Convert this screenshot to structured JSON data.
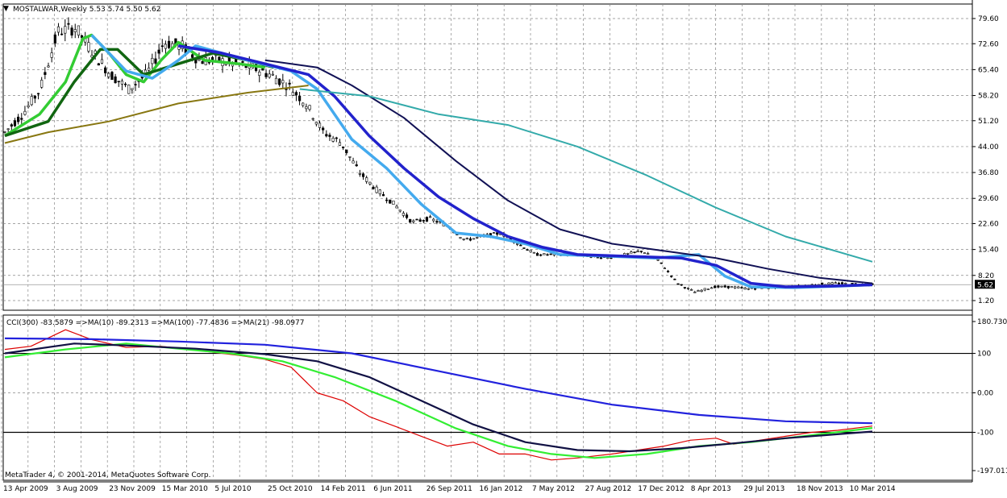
{
  "header": {
    "symbol_line": "MOSTALWAR,Weekly  5.53 5.74 5.50 5.62",
    "menu_icon": "triangle-down-icon"
  },
  "indicator_header": {
    "text": "CCI(300) -83.5879  =>MA(10) -89.2313  =>MA(100) -77.4836  =>MA(21) -98.0977"
  },
  "copyright": "MetaTrader 4, © 2001-2014, MetaQuotes Software Corp.",
  "current_price_label": "5.62",
  "colors": {
    "candles": "#000000",
    "ema_fast_light": "#33cc33",
    "ema_fast_dark": "#116611",
    "ema_long_olive": "#887711",
    "ma_blue": "#2222cc",
    "ma_lightblue": "#44aaee",
    "ma_navy": "#111155",
    "ma_teal": "#33aaaa",
    "cci": "#dd0000",
    "cci_ma10": "#33ee33",
    "cci_ma100": "#2222dd",
    "cci_ma21": "#111144",
    "grid": "#888888"
  },
  "chart_data": [
    {
      "type": "candlestick",
      "title": "MOSTALWAR,Weekly",
      "ohlc_last": {
        "open": 5.53,
        "high": 5.74,
        "low": 5.5,
        "close": 5.62
      },
      "y_ticks": [
        "79.60",
        "72.60",
        "65.40",
        "58.20",
        "51.20",
        "44.00",
        "36.80",
        "29.60",
        "22.60",
        "15.40",
        "8.20",
        "1.20"
      ],
      "ylim": [
        1.2,
        79.6
      ],
      "grid": true,
      "x_ticks": [
        "13 Apr 2009",
        "3 Aug 2009",
        "23 Nov 2009",
        "15 Mar 2010",
        "5 Jul 2010",
        "25 Oct 2010",
        "14 Feb 2011",
        "6 Jun 2011",
        "26 Sep 2011",
        "16 Jan 2012",
        "7 May 2012",
        "27 Aug 2012",
        "17 Dec 2012",
        "8 Apr 2013",
        "29 Jul 2013",
        "18 Nov 2013",
        "10 Mar 2014"
      ],
      "price_path": [
        [
          "13 Apr 2009",
          48
        ],
        [
          "18 May 2009",
          53
        ],
        [
          "22 Jun 2009",
          60
        ],
        [
          "27 Jul 2009",
          76
        ],
        [
          "3 Aug 2009",
          77
        ],
        [
          "7 Sep 2009",
          70
        ],
        [
          "12 Oct 2009",
          64
        ],
        [
          "23 Nov 2009",
          60
        ],
        [
          "4 Jan 2010",
          64
        ],
        [
          "15 Feb 2010",
          73
        ],
        [
          "15 Mar 2010",
          72
        ],
        [
          "26 Apr 2010",
          68
        ],
        [
          "31 May 2010",
          68
        ],
        [
          "5 Jul 2010",
          67
        ],
        [
          "16 Aug 2010",
          66
        ],
        [
          "27 Sep 2010",
          64
        ],
        [
          "25 Oct 2010",
          61
        ],
        [
          "22 Nov 2010",
          56
        ],
        [
          "3 Jan 2011",
          48
        ],
        [
          "14 Feb 2011",
          45
        ],
        [
          "28 Mar 2011",
          37
        ],
        [
          "2 May 2011",
          32
        ],
        [
          "6 Jun 2011",
          28
        ],
        [
          "18 Jul 2011",
          23
        ],
        [
          "29 Aug 2011",
          24
        ],
        [
          "26 Sep 2011",
          22
        ],
        [
          "7 Nov 2011",
          18
        ],
        [
          "12 Dec 2011",
          19
        ],
        [
          "16 Jan 2012",
          20
        ],
        [
          "27 Feb 2012",
          17
        ],
        [
          "2 Apr 2012",
          14
        ],
        [
          "7 May 2012",
          14
        ],
        [
          "18 Jun 2012",
          14
        ],
        [
          "27 Aug 2012",
          13.5
        ],
        [
          "8 Oct 2012",
          13
        ],
        [
          "12 Nov 2012",
          14
        ],
        [
          "17 Dec 2012",
          15
        ],
        [
          "4 Feb 2013",
          12
        ],
        [
          "11 Mar 2013",
          6
        ],
        [
          "8 Apr 2013",
          3.5
        ],
        [
          "20 May 2013",
          5
        ],
        [
          "24 Jun 2013",
          5
        ],
        [
          "29 Jul 2013",
          4.5
        ],
        [
          "9 Sep 2013",
          4.8
        ],
        [
          "14 Oct 2013",
          5
        ],
        [
          "18 Nov 2013",
          5.2
        ],
        [
          "30 Dec 2013",
          5.8
        ],
        [
          "10 Feb 2014",
          6
        ],
        [
          "10 Mar 2014",
          5.8
        ],
        [
          "14 Apr 2014",
          5.62
        ]
      ],
      "moving_averages": [
        {
          "color_key": "ema_fast_light",
          "values": [
            [
              0.0,
              47
            ],
            [
              0.04,
              53
            ],
            [
              0.07,
              62
            ],
            [
              0.09,
              74
            ],
            [
              0.1,
              75
            ],
            [
              0.12,
              70
            ],
            [
              0.14,
              64
            ],
            [
              0.16,
              62
            ],
            [
              0.18,
              68
            ],
            [
              0.2,
              73
            ],
            [
              0.23,
              68
            ],
            [
              0.27,
              67
            ],
            [
              0.3,
              66
            ]
          ]
        },
        {
          "color_key": "ema_fast_dark",
          "values": [
            [
              0.0,
              47
            ],
            [
              0.05,
              51
            ],
            [
              0.08,
              62
            ],
            [
              0.11,
              71
            ],
            [
              0.13,
              71
            ],
            [
              0.16,
              64
            ],
            [
              0.2,
              67
            ],
            [
              0.24,
              70
            ],
            [
              0.28,
              68
            ],
            [
              0.31,
              66
            ]
          ]
        },
        {
          "color_key": "ema_long_olive",
          "values": [
            [
              0.0,
              45
            ],
            [
              0.05,
              48
            ],
            [
              0.12,
              51
            ],
            [
              0.2,
              56
            ],
            [
              0.28,
              59
            ],
            [
              0.35,
              61
            ]
          ]
        },
        {
          "color_key": "ma_lightblue",
          "values": [
            [
              0.1,
              75
            ],
            [
              0.14,
              65
            ],
            [
              0.17,
              63
            ],
            [
              0.2,
              68
            ],
            [
              0.22,
              72
            ],
            [
              0.28,
              68
            ],
            [
              0.33,
              65
            ],
            [
              0.36,
              60
            ],
            [
              0.4,
              46
            ],
            [
              0.44,
              38
            ],
            [
              0.48,
              28
            ],
            [
              0.52,
              20
            ],
            [
              0.56,
              19
            ],
            [
              0.6,
              17
            ],
            [
              0.64,
              14
            ],
            [
              0.7,
              13.5
            ],
            [
              0.75,
              13
            ],
            [
              0.8,
              14
            ],
            [
              0.83,
              8
            ],
            [
              0.86,
              5
            ],
            [
              0.91,
              4.8
            ],
            [
              0.96,
              5.2
            ],
            [
              1.0,
              5.6
            ]
          ]
        },
        {
          "color_key": "ma_blue",
          "values": [
            [
              0.2,
              72
            ],
            [
              0.25,
              70
            ],
            [
              0.3,
              67
            ],
            [
              0.35,
              64
            ],
            [
              0.38,
              58
            ],
            [
              0.42,
              47
            ],
            [
              0.46,
              38
            ],
            [
              0.5,
              30
            ],
            [
              0.54,
              24
            ],
            [
              0.58,
              19
            ],
            [
              0.62,
              16
            ],
            [
              0.66,
              14
            ],
            [
              0.72,
              13.5
            ],
            [
              0.78,
              13
            ],
            [
              0.82,
              11
            ],
            [
              0.86,
              6
            ],
            [
              0.9,
              5
            ],
            [
              0.95,
              5.2
            ],
            [
              1.0,
              5.6
            ]
          ]
        },
        {
          "color_key": "ma_navy",
          "values": [
            [
              0.3,
              68
            ],
            [
              0.36,
              66
            ],
            [
              0.4,
              61
            ],
            [
              0.46,
              52
            ],
            [
              0.52,
              40
            ],
            [
              0.58,
              29
            ],
            [
              0.64,
              21
            ],
            [
              0.7,
              17
            ],
            [
              0.76,
              15
            ],
            [
              0.82,
              13
            ],
            [
              0.88,
              10
            ],
            [
              0.94,
              7.5
            ],
            [
              1.0,
              6
            ]
          ]
        },
        {
          "color_key": "ma_teal",
          "values": [
            [
              0.34,
              60
            ],
            [
              0.42,
              58
            ],
            [
              0.5,
              53
            ],
            [
              0.58,
              50
            ],
            [
              0.66,
              44
            ],
            [
              0.74,
              36
            ],
            [
              0.82,
              27
            ],
            [
              0.9,
              19
            ],
            [
              1.0,
              12
            ]
          ]
        }
      ]
    },
    {
      "type": "line",
      "title": "CCI(300)",
      "y_ticks": [
        "180.7301",
        "100",
        "0.00",
        "-100",
        "-197.011"
      ],
      "ylim": [
        -197.011,
        180.7301
      ],
      "levels": [
        100,
        -100
      ],
      "series": [
        {
          "name": "CCI(300)",
          "color_key": "cci",
          "last": -83.5879,
          "points": [
            [
              0.0,
              110
            ],
            [
              0.03,
              118
            ],
            [
              0.07,
              160
            ],
            [
              0.1,
              135
            ],
            [
              0.14,
              115
            ],
            [
              0.18,
              118
            ],
            [
              0.22,
              108
            ],
            [
              0.27,
              95
            ],
            [
              0.3,
              85
            ],
            [
              0.33,
              65
            ],
            [
              0.36,
              0
            ],
            [
              0.39,
              -20
            ],
            [
              0.42,
              -60
            ],
            [
              0.45,
              -85
            ],
            [
              0.48,
              -110
            ],
            [
              0.51,
              -135
            ],
            [
              0.54,
              -125
            ],
            [
              0.57,
              -155
            ],
            [
              0.6,
              -155
            ],
            [
              0.63,
              -170
            ],
            [
              0.66,
              -165
            ],
            [
              0.7,
              -155
            ],
            [
              0.73,
              -145
            ],
            [
              0.76,
              -135
            ],
            [
              0.79,
              -120
            ],
            [
              0.82,
              -115
            ],
            [
              0.84,
              -130
            ],
            [
              0.87,
              -120
            ],
            [
              0.9,
              -110
            ],
            [
              0.93,
              -100
            ],
            [
              0.96,
              -95
            ],
            [
              1.0,
              -84
            ]
          ]
        },
        {
          "name": "MA(10)",
          "color_key": "cci_ma10",
          "last": -89.2313,
          "points": [
            [
              0.0,
              90
            ],
            [
              0.07,
              110
            ],
            [
              0.14,
              125
            ],
            [
              0.2,
              112
            ],
            [
              0.26,
              100
            ],
            [
              0.32,
              80
            ],
            [
              0.38,
              40
            ],
            [
              0.45,
              -20
            ],
            [
              0.52,
              -90
            ],
            [
              0.58,
              -135
            ],
            [
              0.63,
              -155
            ],
            [
              0.68,
              -165
            ],
            [
              0.74,
              -155
            ],
            [
              0.8,
              -135
            ],
            [
              0.86,
              -125
            ],
            [
              0.92,
              -110
            ],
            [
              1.0,
              -89
            ]
          ]
        },
        {
          "name": "MA(100)",
          "color_key": "cci_ma100",
          "last": -77.4836,
          "points": [
            [
              0.0,
              138
            ],
            [
              0.1,
              136
            ],
            [
              0.2,
              130
            ],
            [
              0.3,
              122
            ],
            [
              0.4,
              100
            ],
            [
              0.5,
              55
            ],
            [
              0.6,
              10
            ],
            [
              0.7,
              -30
            ],
            [
              0.8,
              -56
            ],
            [
              0.9,
              -72
            ],
            [
              1.0,
              -77
            ]
          ]
        },
        {
          "name": "MA(21)",
          "color_key": "cci_ma21",
          "last": -98.0977,
          "points": [
            [
              0.0,
              100
            ],
            [
              0.08,
              125
            ],
            [
              0.14,
              120
            ],
            [
              0.22,
              112
            ],
            [
              0.3,
              98
            ],
            [
              0.36,
              80
            ],
            [
              0.42,
              40
            ],
            [
              0.48,
              -20
            ],
            [
              0.54,
              -80
            ],
            [
              0.6,
              -125
            ],
            [
              0.66,
              -145
            ],
            [
              0.72,
              -148
            ],
            [
              0.78,
              -140
            ],
            [
              0.84,
              -128
            ],
            [
              0.9,
              -115
            ],
            [
              1.0,
              -98
            ]
          ]
        }
      ]
    }
  ]
}
